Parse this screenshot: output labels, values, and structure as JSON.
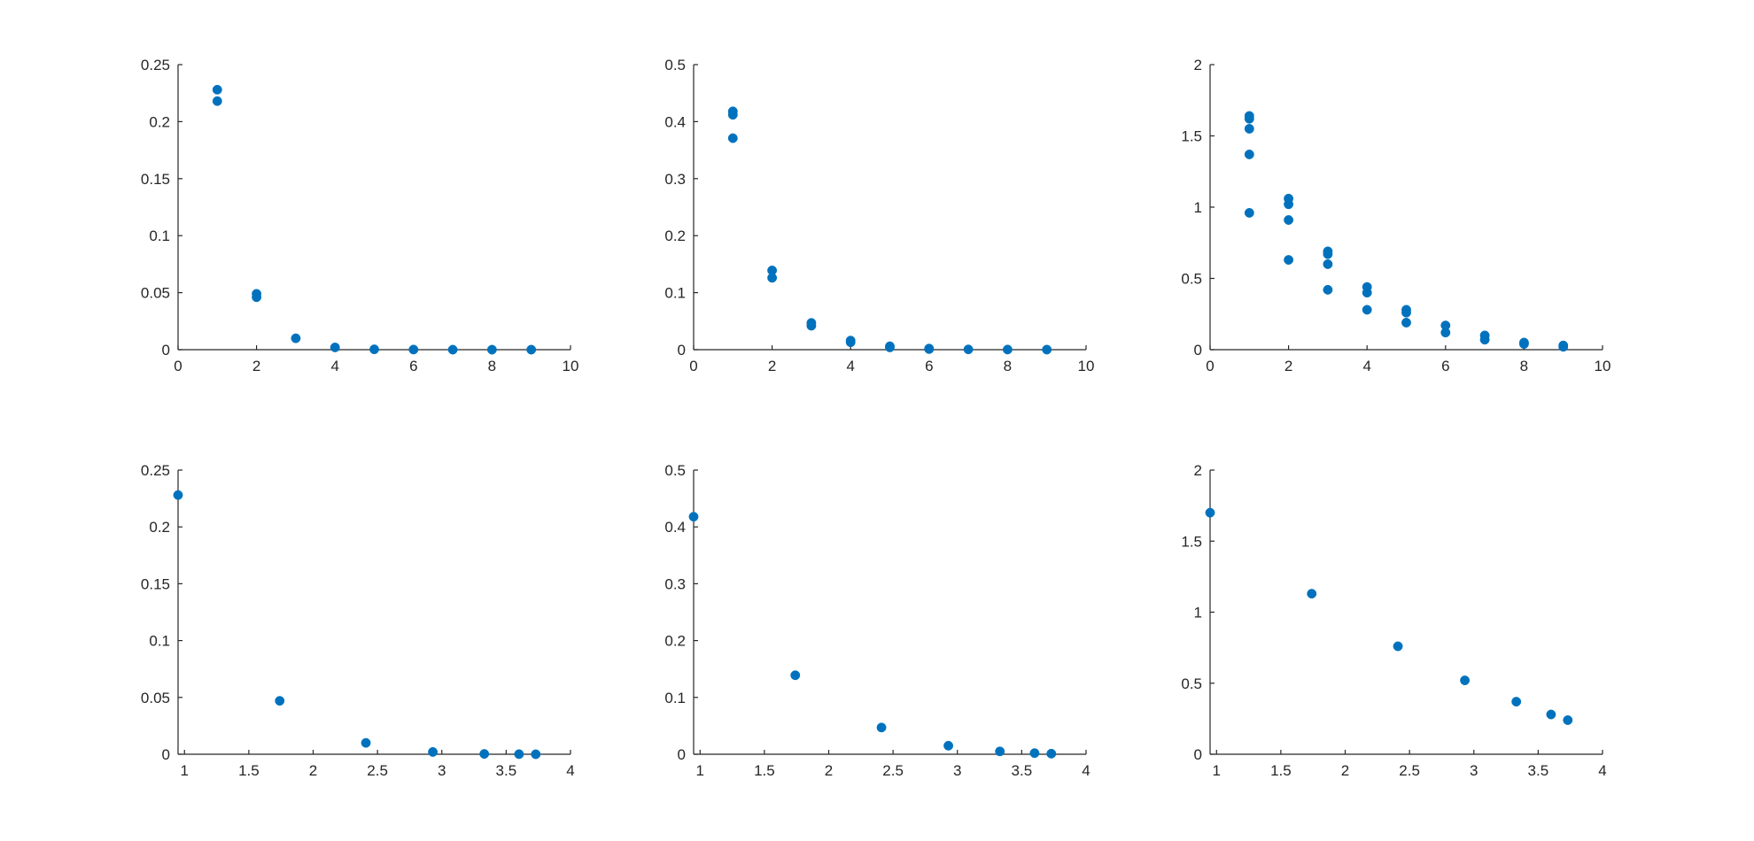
{
  "chart_data": [
    {
      "type": "scatter",
      "xlim": [
        0,
        10
      ],
      "ylim": [
        0,
        0.25
      ],
      "xticks": [
        "0",
        "2",
        "4",
        "6",
        "8",
        "10"
      ],
      "xtick_values": [
        0,
        2,
        4,
        6,
        8,
        10
      ],
      "yticks": [
        "0",
        "0.05",
        "0.1",
        "0.15",
        "0.2",
        "0.25"
      ],
      "ytick_values": [
        0,
        0.05,
        0.1,
        0.15,
        0.2,
        0.25
      ],
      "grid": false,
      "points": [
        [
          1,
          0.228
        ],
        [
          1,
          0.218
        ],
        [
          2,
          0.049
        ],
        [
          2,
          0.046
        ],
        [
          3,
          0.01
        ],
        [
          4,
          0.002
        ],
        [
          5,
          0.0003
        ],
        [
          6,
          0.0001
        ],
        [
          7,
          0.0
        ],
        [
          8,
          0.0
        ],
        [
          9,
          0.0
        ]
      ],
      "color": "#0072bd"
    },
    {
      "type": "scatter",
      "xlim": [
        0,
        10
      ],
      "ylim": [
        0,
        0.5
      ],
      "xticks": [
        "0",
        "2",
        "4",
        "6",
        "8",
        "10"
      ],
      "xtick_values": [
        0,
        2,
        4,
        6,
        8,
        10
      ],
      "yticks": [
        "0",
        "0.1",
        "0.2",
        "0.3",
        "0.4",
        "0.5"
      ],
      "ytick_values": [
        0,
        0.1,
        0.2,
        0.3,
        0.4,
        0.5
      ],
      "grid": false,
      "points": [
        [
          1,
          0.418
        ],
        [
          1,
          0.412
        ],
        [
          1,
          0.371
        ],
        [
          2,
          0.139
        ],
        [
          2,
          0.126
        ],
        [
          3,
          0.047
        ],
        [
          3,
          0.042
        ],
        [
          4,
          0.016
        ],
        [
          4,
          0.013
        ],
        [
          5,
          0.006
        ],
        [
          5,
          0.004
        ],
        [
          6,
          0.002
        ],
        [
          6,
          0.001
        ],
        [
          7,
          0.0005
        ],
        [
          8,
          0.0002
        ],
        [
          9,
          0.0001
        ]
      ],
      "color": "#0072bd"
    },
    {
      "type": "scatter",
      "xlim": [
        0,
        10
      ],
      "ylim": [
        0,
        2
      ],
      "xticks": [
        "0",
        "2",
        "4",
        "6",
        "8",
        "10"
      ],
      "xtick_values": [
        0,
        2,
        4,
        6,
        8,
        10
      ],
      "yticks": [
        "0",
        "0.5",
        "1",
        "1.5",
        "2"
      ],
      "ytick_values": [
        0,
        0.5,
        1,
        1.5,
        2
      ],
      "grid": false,
      "points": [
        [
          1,
          1.64
        ],
        [
          1,
          1.62
        ],
        [
          1,
          1.55
        ],
        [
          1,
          1.37
        ],
        [
          1,
          0.96
        ],
        [
          2,
          1.06
        ],
        [
          2,
          1.02
        ],
        [
          2,
          0.91
        ],
        [
          2,
          0.63
        ],
        [
          3,
          0.69
        ],
        [
          3,
          0.67
        ],
        [
          3,
          0.6
        ],
        [
          3,
          0.42
        ],
        [
          4,
          0.44
        ],
        [
          4,
          0.4
        ],
        [
          4,
          0.28
        ],
        [
          5,
          0.28
        ],
        [
          5,
          0.26
        ],
        [
          5,
          0.19
        ],
        [
          6,
          0.17
        ],
        [
          6,
          0.12
        ],
        [
          7,
          0.1
        ],
        [
          7,
          0.07
        ],
        [
          8,
          0.05
        ],
        [
          8,
          0.04
        ],
        [
          9,
          0.03
        ],
        [
          9,
          0.02
        ]
      ],
      "color": "#0072bd"
    },
    {
      "type": "scatter",
      "xlim": [
        0.95,
        4
      ],
      "ylim": [
        0,
        0.25
      ],
      "xticks": [
        "1",
        "1.5",
        "2",
        "2.5",
        "3",
        "3.5",
        "4"
      ],
      "xtick_values": [
        1,
        1.5,
        2,
        2.5,
        3,
        3.5,
        4
      ],
      "yticks": [
        "0",
        "0.05",
        "0.1",
        "0.15",
        "0.2",
        "0.25"
      ],
      "ytick_values": [
        0,
        0.05,
        0.1,
        0.15,
        0.2,
        0.25
      ],
      "grid": false,
      "points": [
        [
          0.95,
          0.228
        ],
        [
          1.74,
          0.047
        ],
        [
          2.41,
          0.01
        ],
        [
          2.93,
          0.002
        ],
        [
          3.33,
          0.0003
        ],
        [
          3.6,
          0.0001
        ],
        [
          3.73,
          0.0
        ]
      ],
      "color": "#0072bd"
    },
    {
      "type": "scatter",
      "xlim": [
        0.95,
        4
      ],
      "ylim": [
        0,
        0.5
      ],
      "xticks": [
        "1",
        "1.5",
        "2",
        "2.5",
        "3",
        "3.5",
        "4"
      ],
      "xtick_values": [
        1,
        1.5,
        2,
        2.5,
        3,
        3.5,
        4
      ],
      "yticks": [
        "0",
        "0.1",
        "0.2",
        "0.3",
        "0.4",
        "0.5"
      ],
      "ytick_values": [
        0,
        0.1,
        0.2,
        0.3,
        0.4,
        0.5
      ],
      "grid": false,
      "points": [
        [
          0.95,
          0.418
        ],
        [
          1.74,
          0.139
        ],
        [
          2.41,
          0.047
        ],
        [
          2.93,
          0.015
        ],
        [
          3.33,
          0.005
        ],
        [
          3.6,
          0.002
        ],
        [
          3.73,
          0.001
        ]
      ],
      "color": "#0072bd"
    },
    {
      "type": "scatter",
      "xlim": [
        0.95,
        4
      ],
      "ylim": [
        0,
        2
      ],
      "xticks": [
        "1",
        "1.5",
        "2",
        "2.5",
        "3",
        "3.5",
        "4"
      ],
      "xtick_values": [
        1,
        1.5,
        2,
        2.5,
        3,
        3.5,
        4
      ],
      "yticks": [
        "0",
        "0.5",
        "1",
        "1.5",
        "2"
      ],
      "ytick_values": [
        0,
        0.5,
        1,
        1.5,
        2
      ],
      "grid": false,
      "points": [
        [
          0.95,
          1.7
        ],
        [
          1.74,
          1.13
        ],
        [
          2.41,
          0.76
        ],
        [
          2.93,
          0.52
        ],
        [
          3.33,
          0.37
        ],
        [
          3.6,
          0.28
        ],
        [
          3.73,
          0.24
        ]
      ],
      "color": "#0072bd"
    }
  ]
}
